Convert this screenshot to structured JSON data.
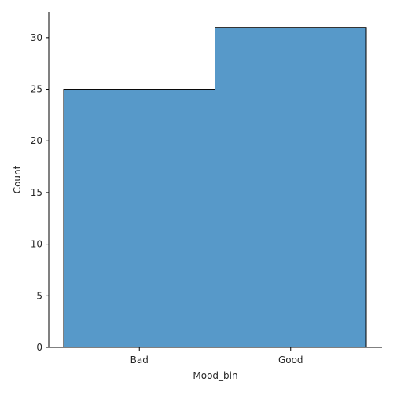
{
  "chart_data": {
    "type": "bar",
    "categories": [
      "Bad",
      "Good"
    ],
    "values": [
      25,
      31
    ],
    "xlabel": "Mood_bin",
    "ylabel": "Count",
    "ylim": [
      0,
      32.5
    ],
    "yticks": [
      0,
      5,
      10,
      15,
      20,
      25,
      30
    ],
    "grid": false,
    "colors": {
      "bar": "#5799c9",
      "edge": "#000000"
    }
  }
}
